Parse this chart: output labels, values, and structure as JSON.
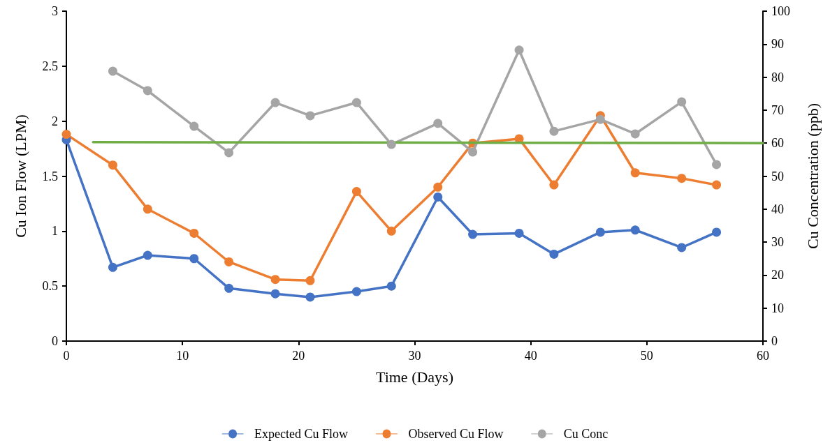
{
  "chart_data": {
    "type": "line",
    "xlabel": "Time (Days)",
    "ylabel": "Cu Ion Flow (LPM)",
    "y2label": "Cu Concentration (ppb)",
    "x": [
      0,
      4,
      7,
      11,
      14,
      18,
      21,
      25,
      28,
      32,
      35,
      39,
      42,
      46,
      49,
      53,
      56
    ],
    "series": [
      {
        "name": "Expected Cu Flow",
        "color": "#4472c4",
        "values": [
          1.83,
          0.67,
          0.78,
          0.75,
          0.48,
          0.43,
          0.4,
          0.45,
          0.5,
          1.31,
          0.97,
          0.98,
          0.79,
          0.99,
          1.01,
          0.85,
          0.99
        ]
      },
      {
        "name": "Observed Cu Flow",
        "color": "#ed7d31",
        "values": [
          1.88,
          1.6,
          1.2,
          0.98,
          0.72,
          0.56,
          0.55,
          1.36,
          1.0,
          1.4,
          1.8,
          1.84,
          1.42,
          2.05,
          1.53,
          1.48,
          1.42
        ]
      },
      {
        "name": "Cu Conc",
        "color": "#a5a5a5",
        "axis": "y2",
        "values": [
          null,
          81.8,
          75.9,
          65.1,
          57.1,
          72.3,
          68.3,
          72.3,
          59.6,
          66.0,
          57.3,
          88.2,
          63.6,
          67.2,
          62.8,
          72.5,
          53.5
        ]
      },
      {
        "color": "#70ad47",
        "axis": "y2",
        "marker": "none",
        "x": [
          2.3,
          60
        ],
        "values": [
          60.3,
          60
        ]
      }
    ],
    "xlim": [
      0,
      60
    ],
    "xticks": [
      0,
      10,
      20,
      30,
      40,
      50,
      60
    ],
    "ylim": [
      0,
      3
    ],
    "yticks": [
      0,
      0.5,
      1,
      1.5,
      2,
      2.5,
      3
    ],
    "y2lim": [
      0,
      100
    ],
    "y2ticks": [
      0,
      10,
      20,
      30,
      40,
      50,
      60,
      70,
      80,
      90,
      100
    ],
    "grid": false,
    "legend": "bottom",
    "marker": "circle",
    "line_style": "solid"
  }
}
